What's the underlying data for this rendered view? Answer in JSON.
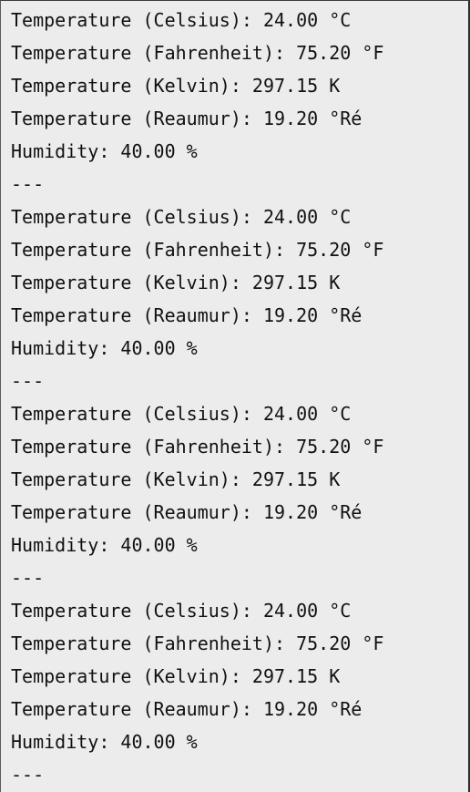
{
  "console": {
    "lines": [
      "Temperature (Celsius): 24.00 °C",
      "Temperature (Fahrenheit): 75.20 °F",
      "Temperature (Kelvin): 297.15 K",
      "Temperature (Reaumur): 19.20 °Ré",
      "Humidity: 40.00 %",
      "---",
      "Temperature (Celsius): 24.00 °C",
      "Temperature (Fahrenheit): 75.20 °F",
      "Temperature (Kelvin): 297.15 K",
      "Temperature (Reaumur): 19.20 °Ré",
      "Humidity: 40.00 %",
      "---",
      "Temperature (Celsius): 24.00 °C",
      "Temperature (Fahrenheit): 75.20 °F",
      "Temperature (Kelvin): 297.15 K",
      "Temperature (Reaumur): 19.20 °Ré",
      "Humidity: 40.00 %",
      "---",
      "Temperature (Celsius): 24.00 °C",
      "Temperature (Fahrenheit): 75.20 °F",
      "Temperature (Kelvin): 297.15 K",
      "Temperature (Reaumur): 19.20 °Ré",
      "Humidity: 40.00 %",
      "---"
    ]
  }
}
